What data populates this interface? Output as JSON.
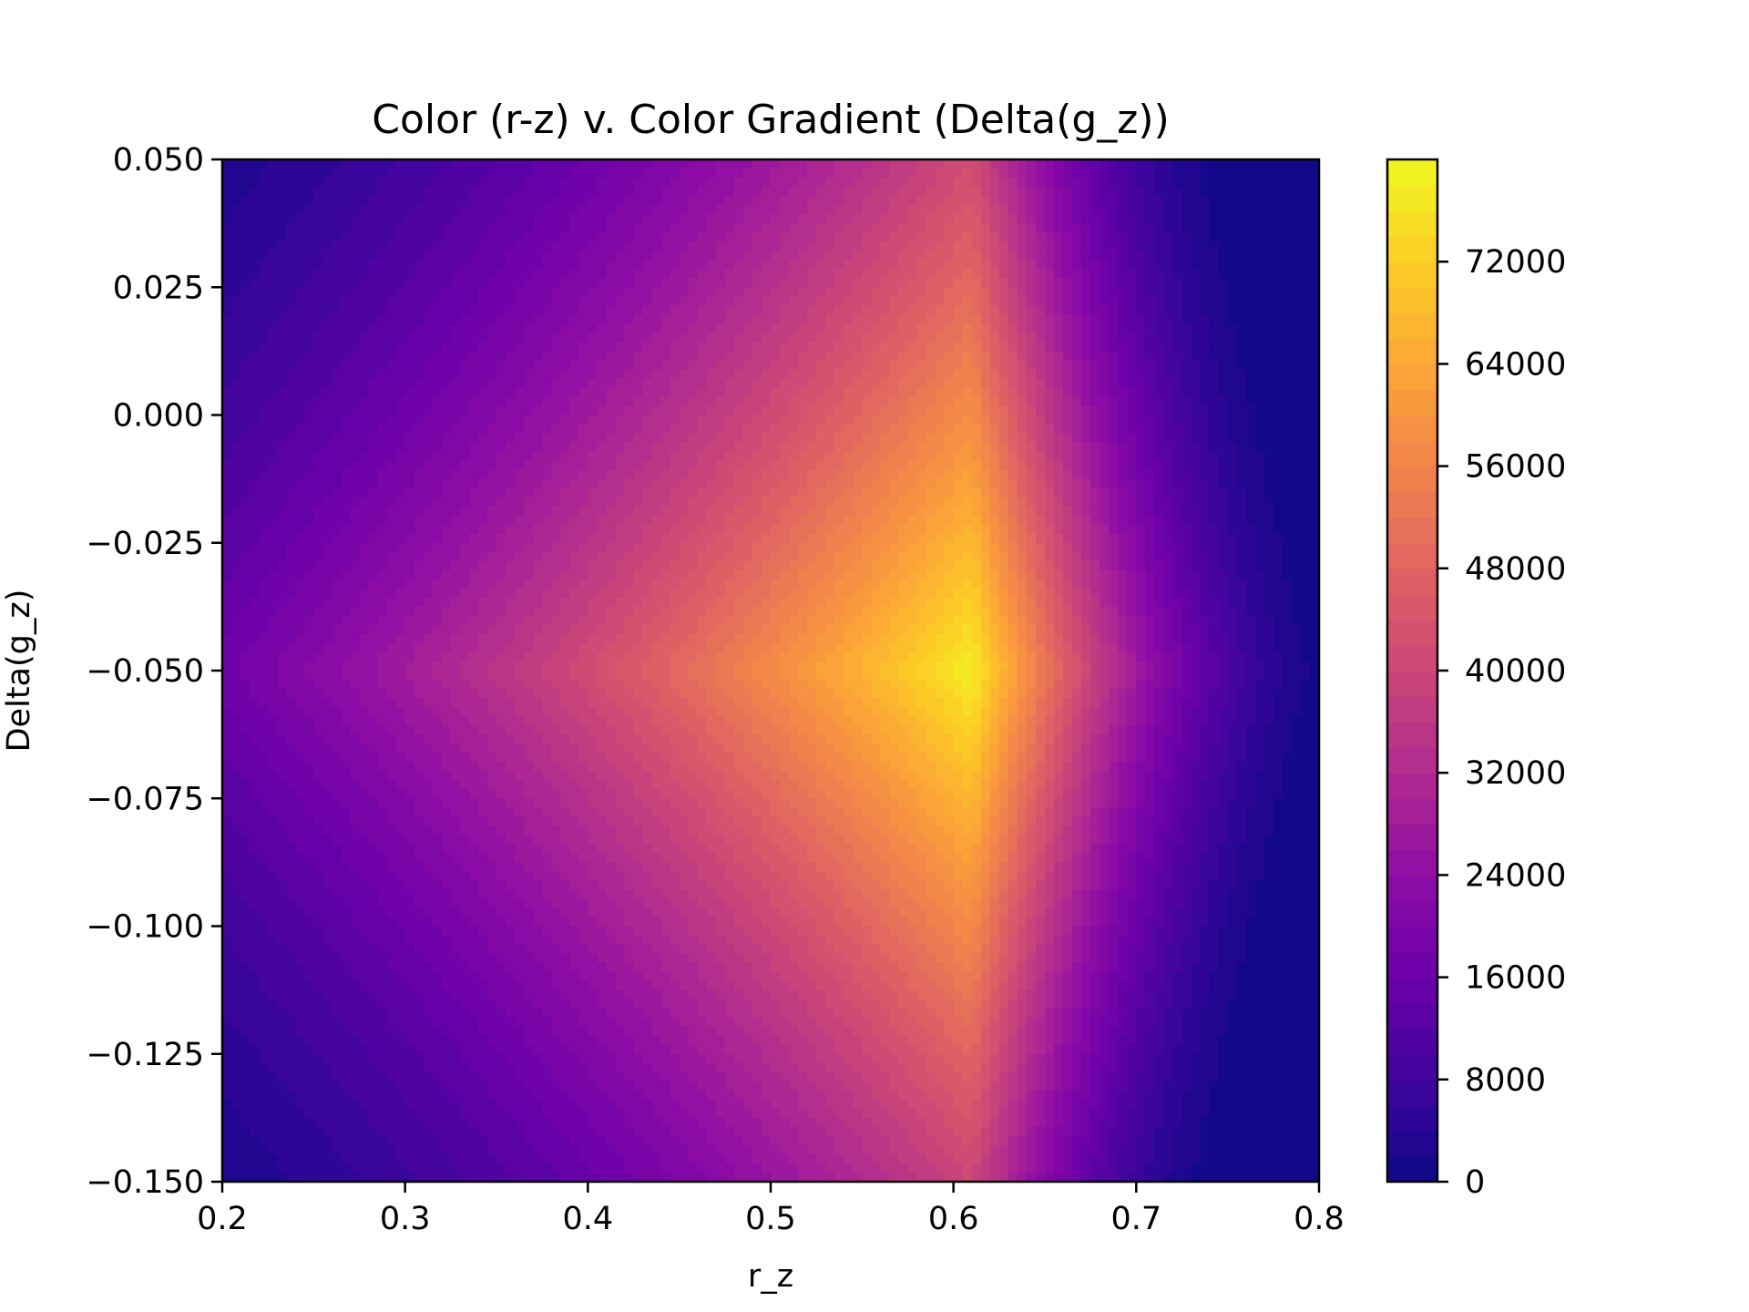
{
  "chart_data": {
    "type": "heatmap",
    "title": "Color (r-z) v. Color Gradient (Delta(g_z))",
    "xlabel": "r_z",
    "ylabel": "Delta(g_z)",
    "xlim": [
      0.2,
      0.8
    ],
    "ylim": [
      -0.15,
      0.05
    ],
    "x_ticks": [
      "0.2",
      "0.3",
      "0.4",
      "0.5",
      "0.6",
      "0.7",
      "0.8"
    ],
    "y_ticks": [
      "0.050",
      "0.025",
      "0.000",
      "−0.025",
      "−0.050",
      "−0.075",
      "−0.100",
      "−0.125",
      "−0.150"
    ],
    "colormap": "plasma",
    "colorbar": {
      "range": [
        0,
        80000
      ],
      "ticks": [
        "0",
        "8000",
        "16000",
        "24000",
        "32000",
        "40000",
        "48000",
        "56000",
        "64000",
        "72000"
      ]
    },
    "peak": {
      "x": 0.61,
      "y": -0.05,
      "value": 78000
    },
    "grid": false
  }
}
